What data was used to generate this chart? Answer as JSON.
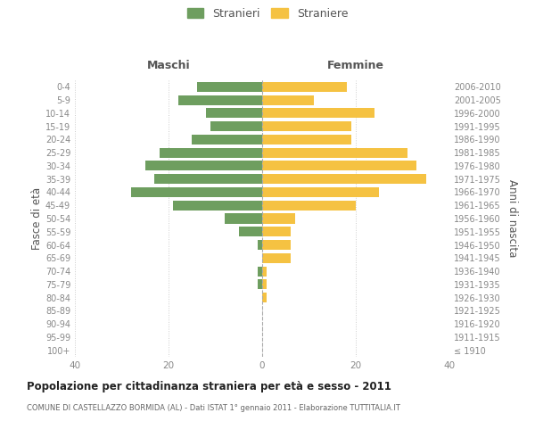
{
  "age_groups": [
    "100+",
    "95-99",
    "90-94",
    "85-89",
    "80-84",
    "75-79",
    "70-74",
    "65-69",
    "60-64",
    "55-59",
    "50-54",
    "45-49",
    "40-44",
    "35-39",
    "30-34",
    "25-29",
    "20-24",
    "15-19",
    "10-14",
    "5-9",
    "0-4"
  ],
  "birth_years": [
    "≤ 1910",
    "1911-1915",
    "1916-1920",
    "1921-1925",
    "1926-1930",
    "1931-1935",
    "1936-1940",
    "1941-1945",
    "1946-1950",
    "1951-1955",
    "1956-1960",
    "1961-1965",
    "1966-1970",
    "1971-1975",
    "1976-1980",
    "1981-1985",
    "1986-1990",
    "1991-1995",
    "1996-2000",
    "2001-2005",
    "2006-2010"
  ],
  "maschi": [
    0,
    0,
    0,
    0,
    0,
    1,
    1,
    0,
    1,
    5,
    8,
    19,
    28,
    23,
    25,
    22,
    15,
    11,
    12,
    18,
    14
  ],
  "femmine": [
    0,
    0,
    0,
    0,
    1,
    1,
    1,
    6,
    6,
    6,
    7,
    20,
    25,
    35,
    33,
    31,
    19,
    19,
    24,
    11,
    18
  ],
  "maschi_color": "#6e9e5f",
  "femmine_color": "#f5c242",
  "title": "Popolazione per cittadinanza straniera per età e sesso - 2011",
  "subtitle": "COMUNE DI CASTELLAZZO BORMIDA (AL) - Dati ISTAT 1° gennaio 2011 - Elaborazione TUTTITALIA.IT",
  "ylabel_left": "Fasce di età",
  "ylabel_right": "Anni di nascita",
  "xlabel_maschi": "Maschi",
  "xlabel_femmine": "Femmine",
  "legend_maschi": "Stranieri",
  "legend_femmine": "Straniere",
  "xlim": 40,
  "background_color": "#ffffff",
  "grid_color": "#cccccc",
  "axis_label_color": "#555555",
  "tick_label_color": "#888888"
}
